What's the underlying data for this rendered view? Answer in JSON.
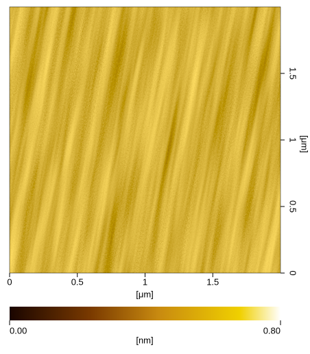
{
  "chart_data": {
    "type": "afm-image",
    "xlim": [
      0,
      2
    ],
    "xticks": [
      0,
      0.5,
      1,
      1.5
    ],
    "xlabel": "[μm]",
    "ylim": [
      0,
      2
    ],
    "yticks": [
      0,
      0.5,
      1,
      1.5
    ],
    "ylabel": "[μm]",
    "colorbar": {
      "lim": [
        0,
        0.8
      ],
      "ticks": [
        {
          "value": 0,
          "label": "0.00"
        },
        {
          "value": 0.8,
          "label": "0.80"
        }
      ],
      "label": "[nm]"
    }
  }
}
